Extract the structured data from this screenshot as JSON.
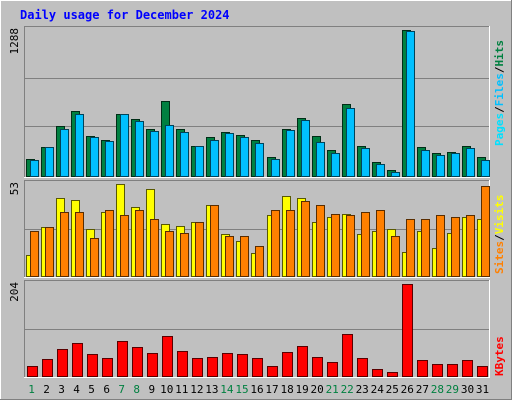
{
  "title": "Daily usage for December 2024",
  "colors": {
    "title": "#0000ff",
    "hits": "#008040",
    "files": "#00c0ff",
    "pages": "#00e0ff",
    "visits": "#ffff00",
    "sites": "#ff8000",
    "kbytes": "#ff0000",
    "weekend": "#008040",
    "weekday": "#000000",
    "panel_bg": "#c0c0c0",
    "grid": "#808080"
  },
  "right_labels": {
    "top": [
      {
        "text": "Pages",
        "color_key": "pages"
      },
      {
        "text": "/",
        "color_key": "weekday"
      },
      {
        "text": "Files",
        "color_key": "files"
      },
      {
        "text": "/",
        "color_key": "weekday"
      },
      {
        "text": "Hits",
        "color_key": "hits"
      }
    ],
    "middle": [
      {
        "text": "Sites",
        "color_key": "sites"
      },
      {
        "text": "/",
        "color_key": "weekday"
      },
      {
        "text": "Visits",
        "color_key": "visits"
      }
    ],
    "bottom": [
      {
        "text": "KBytes",
        "color_key": "kbytes"
      }
    ]
  },
  "chart_data": {
    "type": "bar",
    "categories": [
      "1",
      "2",
      "3",
      "4",
      "5",
      "6",
      "7",
      "8",
      "9",
      "10",
      "11",
      "12",
      "13",
      "14",
      "15",
      "16",
      "17",
      "18",
      "19",
      "20",
      "21",
      "22",
      "23",
      "24",
      "25",
      "26",
      "27",
      "28",
      "29",
      "30",
      "31"
    ],
    "weekend_days": [
      "1",
      "7",
      "8",
      "14",
      "15",
      "21",
      "22",
      "28",
      "29"
    ],
    "panels": [
      {
        "id": "top",
        "ymax": 1288,
        "ymax_label": "1288",
        "series": [
          {
            "key": "hits",
            "values": [
              154,
              254,
              437,
              571,
              349,
              318,
              551,
              507,
              419,
              660,
              411,
              264,
              340,
              391,
              365,
              314,
              167,
              412,
              512,
              355,
              228,
              632,
              266,
              123,
              49,
              1288,
              258,
              201,
              213,
              261,
              167
            ]
          },
          {
            "key": "files",
            "values": [
              138,
              254,
              417,
              550,
              340,
              310,
              550,
              486,
              398,
              452,
              389,
              263,
              318,
              376,
              341,
              290,
              150,
              409,
              491,
              302,
              207,
              598,
              251,
              107,
              32,
              1280,
              233,
              189,
              206,
              243,
              139
            ]
          }
        ]
      },
      {
        "id": "middle",
        "ymax": 53,
        "ymax_label": "53",
        "series": [
          {
            "key": "visits",
            "values": [
              12,
              28,
              45,
              44,
              27,
              37,
              53,
              40,
              50,
              30,
              29,
              31,
              41,
              24,
              20,
              13,
              35,
              46,
              45,
              31,
              34,
              36,
              24,
              26,
              27,
              14,
              26,
              16,
              25,
              34,
              33
            ]
          },
          {
            "key": "sites",
            "values": [
              26,
              28,
              37,
              37,
              22,
              38,
              35,
              38,
              33,
              26,
              25,
              31,
              41,
              23,
              23,
              17,
              38,
              38,
              43,
              41,
              36,
              35,
              37,
              38,
              23,
              33,
              33,
              35,
              34,
              35,
              52
            ]
          }
        ]
      },
      {
        "id": "bottom",
        "ymax": 204,
        "ymax_label": "204",
        "series": [
          {
            "key": "kbytes",
            "values": [
              22,
              38,
              60,
              74,
              48,
              40,
              77,
              65,
              52,
              88,
              55,
              39,
              42,
              50,
              48,
              41,
              23,
              54,
              66,
              42,
              30,
              93,
              40,
              16,
              8,
              204,
              35,
              26,
              26,
              35,
              22
            ]
          }
        ]
      }
    ]
  }
}
